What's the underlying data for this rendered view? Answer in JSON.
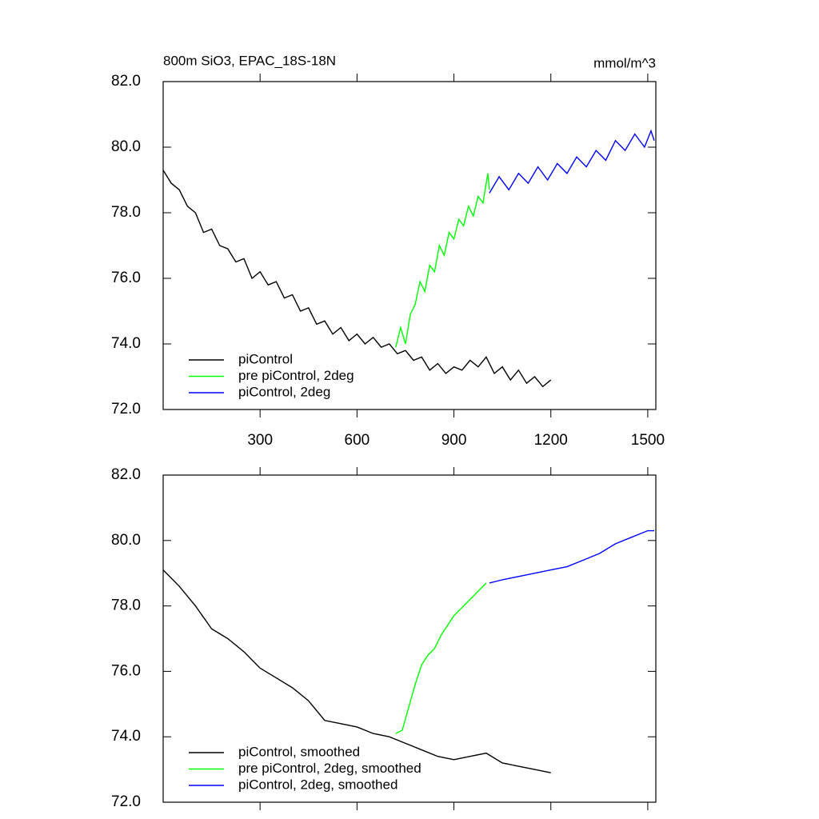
{
  "chart_data": [
    {
      "type": "line",
      "title": "800m SiO3, EPAC_18S-18N",
      "units": "mmol/m^3",
      "xlim": [
        0,
        1525
      ],
      "xticks": [
        300,
        600,
        900,
        1200,
        1500
      ],
      "show_xtick_labels": true,
      "ylim": [
        72,
        82
      ],
      "yticks": [
        {
          "value": 72,
          "label": "72.0"
        },
        {
          "value": 74,
          "label": "74.0"
        },
        {
          "value": 76,
          "label": "76.0"
        },
        {
          "value": 78,
          "label": "78.0"
        },
        {
          "value": 80,
          "label": "80.0"
        },
        {
          "value": 82,
          "label": "82.0"
        }
      ],
      "legend": "lower left",
      "series": [
        {
          "name": "piControl",
          "color": "#000000",
          "x": [
            0,
            25,
            50,
            75,
            100,
            125,
            150,
            175,
            200,
            225,
            250,
            275,
            300,
            325,
            350,
            375,
            400,
            425,
            450,
            475,
            500,
            525,
            550,
            575,
            600,
            625,
            650,
            675,
            700,
            725,
            750,
            775,
            800,
            825,
            850,
            875,
            900,
            925,
            950,
            975,
            1000,
            1025,
            1050,
            1075,
            1100,
            1125,
            1150,
            1175,
            1200
          ],
          "values": [
            79.3,
            78.9,
            78.7,
            78.2,
            78.0,
            77.4,
            77.5,
            77.0,
            76.9,
            76.5,
            76.6,
            76.0,
            76.2,
            75.8,
            75.9,
            75.4,
            75.5,
            75.0,
            75.1,
            74.6,
            74.7,
            74.3,
            74.5,
            74.1,
            74.3,
            74.0,
            74.2,
            73.9,
            74.0,
            73.7,
            73.8,
            73.5,
            73.6,
            73.2,
            73.4,
            73.1,
            73.3,
            73.2,
            73.5,
            73.3,
            73.6,
            73.1,
            73.3,
            72.9,
            73.2,
            72.8,
            73.0,
            72.7,
            72.9
          ]
        },
        {
          "name": "pre piControl, 2deg",
          "color": "#00ff00",
          "x": [
            720,
            735,
            750,
            765,
            780,
            795,
            810,
            825,
            840,
            855,
            870,
            885,
            900,
            915,
            930,
            945,
            960,
            975,
            990,
            1005,
            1010
          ],
          "values": [
            73.9,
            74.5,
            74.0,
            74.9,
            75.2,
            75.9,
            75.6,
            76.4,
            76.2,
            77.0,
            76.7,
            77.4,
            77.2,
            77.8,
            77.6,
            78.2,
            77.9,
            78.5,
            78.3,
            79.2,
            78.7
          ]
        },
        {
          "name": "piControl, 2deg",
          "color": "#0000ff",
          "x": [
            1010,
            1040,
            1070,
            1100,
            1130,
            1160,
            1190,
            1220,
            1250,
            1280,
            1310,
            1340,
            1370,
            1400,
            1430,
            1460,
            1490,
            1510,
            1520
          ],
          "values": [
            78.6,
            79.1,
            78.7,
            79.2,
            78.9,
            79.4,
            79.0,
            79.5,
            79.2,
            79.7,
            79.4,
            79.9,
            79.6,
            80.2,
            79.9,
            80.4,
            80.0,
            80.5,
            80.2
          ]
        }
      ]
    },
    {
      "type": "line",
      "xlim": [
        0,
        1525
      ],
      "xticks": [
        300,
        600,
        900,
        1200,
        1500
      ],
      "show_xtick_labels": false,
      "ylim": [
        72,
        82
      ],
      "yticks": [
        {
          "value": 72,
          "label": "72.0"
        },
        {
          "value": 74,
          "label": "74.0"
        },
        {
          "value": 76,
          "label": "76.0"
        },
        {
          "value": 78,
          "label": "78.0"
        },
        {
          "value": 80,
          "label": "80.0"
        },
        {
          "value": 82,
          "label": "82.0"
        }
      ],
      "legend": "lower left",
      "series": [
        {
          "name": "piControl, smoothed",
          "color": "#000000",
          "x": [
            0,
            50,
            100,
            150,
            200,
            250,
            300,
            350,
            400,
            450,
            500,
            550,
            600,
            650,
            700,
            750,
            800,
            850,
            900,
            950,
            1000,
            1050,
            1100,
            1150,
            1200
          ],
          "values": [
            79.1,
            78.6,
            78.0,
            77.3,
            77.0,
            76.6,
            76.1,
            75.8,
            75.5,
            75.1,
            74.5,
            74.4,
            74.3,
            74.1,
            74.0,
            73.8,
            73.6,
            73.4,
            73.3,
            73.4,
            73.5,
            73.2,
            73.1,
            73.0,
            72.9
          ]
        },
        {
          "name": "pre piControl, 2deg, smoothed",
          "color": "#00ff00",
          "x": [
            720,
            740,
            760,
            780,
            800,
            820,
            840,
            860,
            880,
            900,
            920,
            940,
            960,
            980,
            1000
          ],
          "values": [
            74.1,
            74.2,
            74.9,
            75.6,
            76.2,
            76.5,
            76.7,
            77.1,
            77.4,
            77.7,
            77.9,
            78.1,
            78.3,
            78.5,
            78.7
          ]
        },
        {
          "name": "piControl, 2deg, smoothed",
          "color": "#0000ff",
          "x": [
            1010,
            1050,
            1100,
            1150,
            1200,
            1250,
            1300,
            1350,
            1400,
            1450,
            1500,
            1520
          ],
          "values": [
            78.7,
            78.8,
            78.9,
            79.0,
            79.1,
            79.2,
            79.4,
            79.6,
            79.9,
            80.1,
            80.3,
            80.3
          ]
        }
      ]
    }
  ]
}
